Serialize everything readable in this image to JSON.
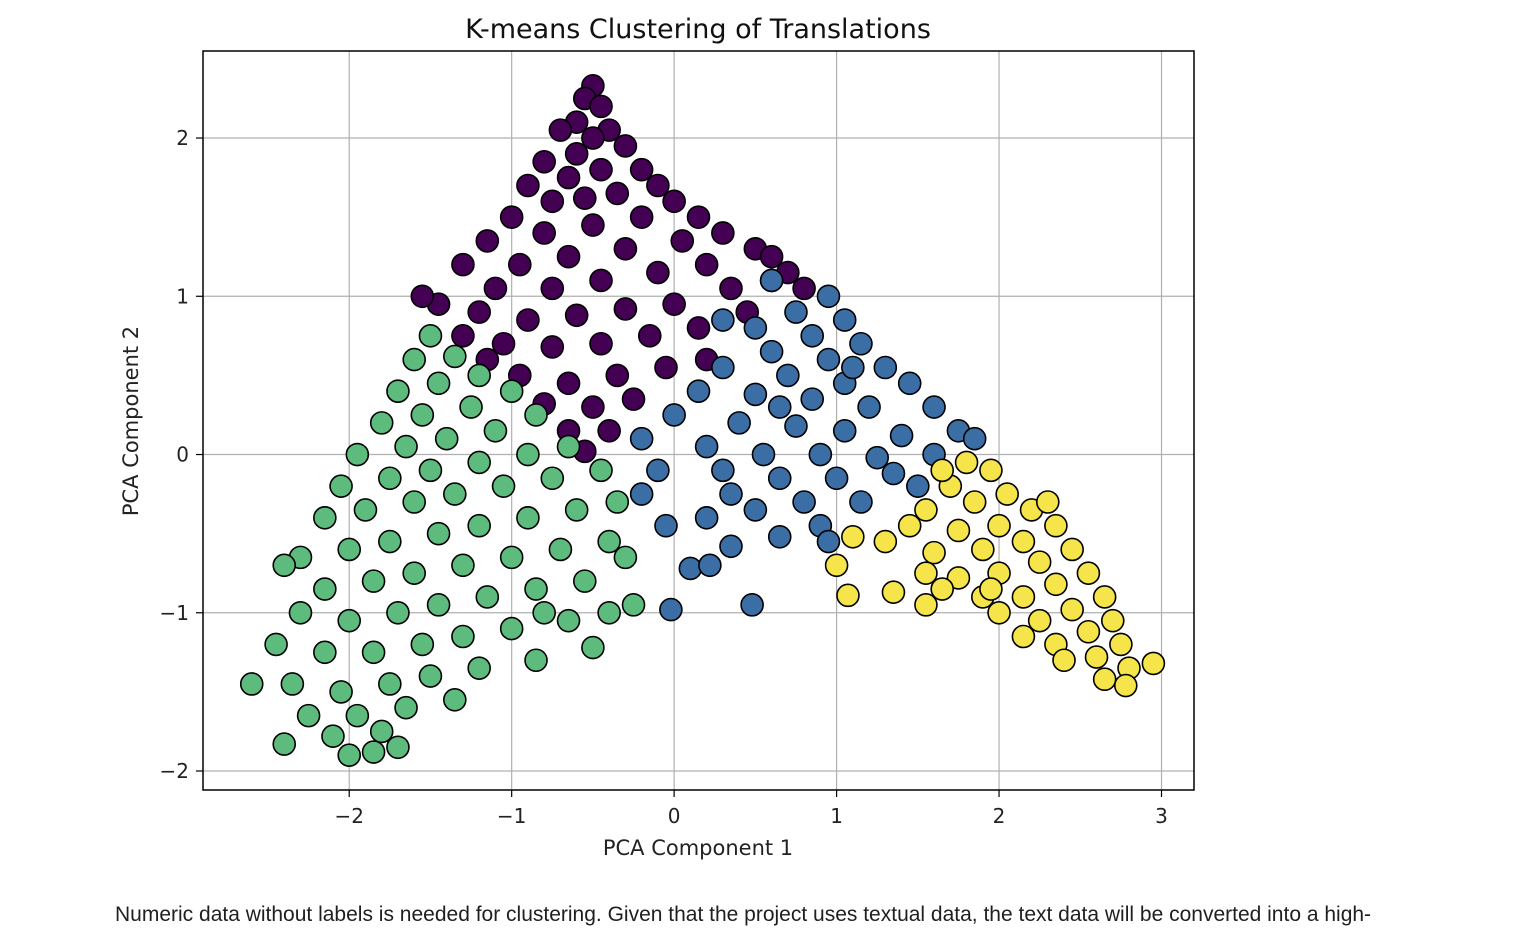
{
  "chart_data": {
    "type": "scatter",
    "title": "K-means Clustering of Translations",
    "xlabel": "PCA Component 1",
    "ylabel": "PCA Component 2",
    "xlim": [
      -2.9,
      3.2
    ],
    "ylim": [
      -2.12,
      2.55
    ],
    "xticks": [
      -2,
      -1,
      0,
      1,
      2,
      3
    ],
    "yticks": [
      -2,
      -1,
      0,
      1,
      2
    ],
    "xtick_labels": [
      "−2",
      "−1",
      "0",
      "1",
      "2",
      "3"
    ],
    "ytick_labels": [
      "−2",
      "−1",
      "0",
      "1",
      "2"
    ],
    "grid": true,
    "legend": "none",
    "marker_edge_color": "#000000",
    "clusters": [
      {
        "color": "#440154",
        "points": [
          [
            -0.5,
            2.33
          ],
          [
            -0.55,
            2.25
          ],
          [
            -0.45,
            2.2
          ],
          [
            -0.6,
            2.1
          ],
          [
            -0.4,
            2.05
          ],
          [
            -0.7,
            2.05
          ],
          [
            -0.5,
            2.0
          ],
          [
            -0.3,
            1.95
          ],
          [
            -0.6,
            1.9
          ],
          [
            -0.8,
            1.85
          ],
          [
            -0.2,
            1.8
          ],
          [
            -0.45,
            1.8
          ],
          [
            -0.65,
            1.75
          ],
          [
            -0.9,
            1.7
          ],
          [
            -0.1,
            1.7
          ],
          [
            -0.35,
            1.65
          ],
          [
            -0.55,
            1.62
          ],
          [
            -0.75,
            1.6
          ],
          [
            0.0,
            1.6
          ],
          [
            -1.0,
            1.5
          ],
          [
            0.15,
            1.5
          ],
          [
            -0.2,
            1.5
          ],
          [
            -0.5,
            1.45
          ],
          [
            -0.8,
            1.4
          ],
          [
            -1.15,
            1.35
          ],
          [
            0.3,
            1.4
          ],
          [
            0.05,
            1.35
          ],
          [
            -0.3,
            1.3
          ],
          [
            -0.65,
            1.25
          ],
          [
            -0.95,
            1.2
          ],
          [
            0.5,
            1.3
          ],
          [
            0.2,
            1.2
          ],
          [
            -0.1,
            1.15
          ],
          [
            -0.45,
            1.1
          ],
          [
            -0.75,
            1.05
          ],
          [
            -1.1,
            1.05
          ],
          [
            -1.3,
            1.2
          ],
          [
            0.6,
            1.25
          ],
          [
            0.35,
            1.05
          ],
          [
            0.0,
            0.95
          ],
          [
            -0.3,
            0.92
          ],
          [
            -0.6,
            0.88
          ],
          [
            -0.9,
            0.85
          ],
          [
            -1.2,
            0.9
          ],
          [
            -1.45,
            0.95
          ],
          [
            -1.55,
            1.0
          ],
          [
            0.45,
            0.9
          ],
          [
            0.15,
            0.8
          ],
          [
            -0.15,
            0.75
          ],
          [
            -0.45,
            0.7
          ],
          [
            -0.75,
            0.68
          ],
          [
            -1.05,
            0.7
          ],
          [
            -1.3,
            0.75
          ],
          [
            0.2,
            0.6
          ],
          [
            -0.05,
            0.55
          ],
          [
            -0.35,
            0.5
          ],
          [
            -0.65,
            0.45
          ],
          [
            -0.95,
            0.5
          ],
          [
            -1.15,
            0.6
          ],
          [
            -0.25,
            0.35
          ],
          [
            -0.5,
            0.3
          ],
          [
            -0.8,
            0.32
          ],
          [
            -0.4,
            0.15
          ],
          [
            -0.65,
            0.15
          ],
          [
            -0.55,
            0.02
          ],
          [
            0.6,
            1.1
          ],
          [
            0.7,
            1.15
          ],
          [
            0.8,
            1.05
          ]
        ]
      },
      {
        "color": "#3b6ea5",
        "points": [
          [
            0.6,
            1.1
          ],
          [
            0.95,
            1.0
          ],
          [
            0.75,
            0.9
          ],
          [
            1.05,
            0.85
          ],
          [
            0.5,
            0.8
          ],
          [
            0.85,
            0.75
          ],
          [
            1.15,
            0.7
          ],
          [
            0.6,
            0.65
          ],
          [
            0.95,
            0.6
          ],
          [
            1.3,
            0.55
          ],
          [
            0.3,
            0.55
          ],
          [
            0.7,
            0.5
          ],
          [
            1.05,
            0.45
          ],
          [
            1.45,
            0.45
          ],
          [
            0.15,
            0.4
          ],
          [
            0.5,
            0.38
          ],
          [
            0.85,
            0.35
          ],
          [
            1.2,
            0.3
          ],
          [
            1.6,
            0.3
          ],
          [
            0.0,
            0.25
          ],
          [
            0.4,
            0.2
          ],
          [
            0.75,
            0.18
          ],
          [
            1.05,
            0.15
          ],
          [
            1.4,
            0.12
          ],
          [
            1.75,
            0.15
          ],
          [
            -0.2,
            0.1
          ],
          [
            0.2,
            0.05
          ],
          [
            0.55,
            0.0
          ],
          [
            0.9,
            0.0
          ],
          [
            1.25,
            -0.02
          ],
          [
            1.6,
            0.0
          ],
          [
            -0.1,
            -0.1
          ],
          [
            0.3,
            -0.1
          ],
          [
            0.65,
            -0.15
          ],
          [
            1.0,
            -0.15
          ],
          [
            1.35,
            -0.12
          ],
          [
            -0.2,
            -0.25
          ],
          [
            0.35,
            -0.25
          ],
          [
            0.8,
            -0.3
          ],
          [
            1.15,
            -0.3
          ],
          [
            0.5,
            -0.35
          ],
          [
            0.9,
            -0.45
          ],
          [
            -0.05,
            -0.45
          ],
          [
            0.2,
            -0.4
          ],
          [
            0.35,
            -0.58
          ],
          [
            0.65,
            -0.52
          ],
          [
            0.95,
            -0.55
          ],
          [
            0.1,
            -0.72
          ],
          [
            0.22,
            -0.7
          ],
          [
            -0.02,
            -0.98
          ],
          [
            0.48,
            -0.95
          ],
          [
            1.85,
            0.1
          ],
          [
            1.5,
            -0.2
          ],
          [
            0.3,
            0.85
          ],
          [
            0.65,
            0.3
          ],
          [
            1.1,
            0.55
          ]
        ]
      },
      {
        "color": "#5dbb7e",
        "points": [
          [
            -1.5,
            0.75
          ],
          [
            -1.35,
            0.62
          ],
          [
            -1.6,
            0.6
          ],
          [
            -1.2,
            0.5
          ],
          [
            -1.45,
            0.45
          ],
          [
            -1.7,
            0.4
          ],
          [
            -1.0,
            0.4
          ],
          [
            -1.25,
            0.3
          ],
          [
            -1.55,
            0.25
          ],
          [
            -1.8,
            0.2
          ],
          [
            -0.85,
            0.25
          ],
          [
            -1.1,
            0.15
          ],
          [
            -1.4,
            0.1
          ],
          [
            -1.65,
            0.05
          ],
          [
            -1.95,
            0.0
          ],
          [
            -0.65,
            0.05
          ],
          [
            -0.9,
            0.0
          ],
          [
            -1.2,
            -0.05
          ],
          [
            -1.5,
            -0.1
          ],
          [
            -1.75,
            -0.15
          ],
          [
            -2.05,
            -0.2
          ],
          [
            -0.45,
            -0.1
          ],
          [
            -0.75,
            -0.15
          ],
          [
            -1.05,
            -0.2
          ],
          [
            -1.35,
            -0.25
          ],
          [
            -1.6,
            -0.3
          ],
          [
            -1.9,
            -0.35
          ],
          [
            -2.15,
            -0.4
          ],
          [
            -0.35,
            -0.3
          ],
          [
            -0.6,
            -0.35
          ],
          [
            -0.9,
            -0.4
          ],
          [
            -1.2,
            -0.45
          ],
          [
            -1.45,
            -0.5
          ],
          [
            -1.75,
            -0.55
          ],
          [
            -2.0,
            -0.6
          ],
          [
            -2.3,
            -0.65
          ],
          [
            -0.4,
            -0.55
          ],
          [
            -0.7,
            -0.6
          ],
          [
            -1.0,
            -0.65
          ],
          [
            -1.3,
            -0.7
          ],
          [
            -1.6,
            -0.75
          ],
          [
            -1.85,
            -0.8
          ],
          [
            -2.15,
            -0.85
          ],
          [
            -2.4,
            -0.7
          ],
          [
            -0.55,
            -0.8
          ],
          [
            -0.85,
            -0.85
          ],
          [
            -1.15,
            -0.9
          ],
          [
            -1.45,
            -0.95
          ],
          [
            -1.7,
            -1.0
          ],
          [
            -2.0,
            -1.05
          ],
          [
            -2.3,
            -1.0
          ],
          [
            -0.4,
            -1.0
          ],
          [
            -0.65,
            -1.05
          ],
          [
            -1.0,
            -1.1
          ],
          [
            -1.3,
            -1.15
          ],
          [
            -1.55,
            -1.2
          ],
          [
            -1.85,
            -1.25
          ],
          [
            -2.15,
            -1.25
          ],
          [
            -2.45,
            -1.2
          ],
          [
            -0.5,
            -1.22
          ],
          [
            -0.85,
            -1.3
          ],
          [
            -1.2,
            -1.35
          ],
          [
            -1.5,
            -1.4
          ],
          [
            -1.75,
            -1.45
          ],
          [
            -2.05,
            -1.5
          ],
          [
            -2.35,
            -1.45
          ],
          [
            -2.6,
            -1.45
          ],
          [
            -1.35,
            -1.55
          ],
          [
            -1.65,
            -1.6
          ],
          [
            -1.95,
            -1.65
          ],
          [
            -2.25,
            -1.65
          ],
          [
            -1.8,
            -1.75
          ],
          [
            -2.1,
            -1.78
          ],
          [
            -2.4,
            -1.83
          ],
          [
            -2.0,
            -1.9
          ],
          [
            -1.85,
            -1.88
          ],
          [
            -1.7,
            -1.85
          ],
          [
            -0.8,
            -1.0
          ],
          [
            -0.3,
            -0.65
          ],
          [
            -0.25,
            -0.95
          ]
        ]
      },
      {
        "color": "#f5e44a",
        "points": [
          [
            1.8,
            -0.05
          ],
          [
            1.95,
            -0.1
          ],
          [
            1.7,
            -0.2
          ],
          [
            2.05,
            -0.25
          ],
          [
            1.85,
            -0.3
          ],
          [
            1.55,
            -0.35
          ],
          [
            2.2,
            -0.35
          ],
          [
            2.0,
            -0.45
          ],
          [
            1.75,
            -0.48
          ],
          [
            1.45,
            -0.45
          ],
          [
            2.35,
            -0.45
          ],
          [
            2.15,
            -0.55
          ],
          [
            1.9,
            -0.6
          ],
          [
            1.6,
            -0.62
          ],
          [
            1.3,
            -0.55
          ],
          [
            2.45,
            -0.6
          ],
          [
            2.25,
            -0.68
          ],
          [
            2.0,
            -0.75
          ],
          [
            1.75,
            -0.78
          ],
          [
            1.1,
            -0.52
          ],
          [
            2.55,
            -0.75
          ],
          [
            2.35,
            -0.82
          ],
          [
            2.15,
            -0.9
          ],
          [
            1.9,
            -0.9
          ],
          [
            1.55,
            -0.75
          ],
          [
            2.65,
            -0.9
          ],
          [
            2.45,
            -0.98
          ],
          [
            2.25,
            -1.05
          ],
          [
            2.0,
            -1.0
          ],
          [
            1.65,
            -0.85
          ],
          [
            2.7,
            -1.05
          ],
          [
            2.55,
            -1.12
          ],
          [
            2.35,
            -1.2
          ],
          [
            2.15,
            -1.15
          ],
          [
            2.75,
            -1.2
          ],
          [
            2.6,
            -1.28
          ],
          [
            2.4,
            -1.3
          ],
          [
            2.8,
            -1.35
          ],
          [
            2.65,
            -1.42
          ],
          [
            2.78,
            -1.46
          ],
          [
            2.95,
            -1.32
          ],
          [
            1.0,
            -0.7
          ],
          [
            1.07,
            -0.89
          ],
          [
            1.35,
            -0.87
          ],
          [
            1.55,
            -0.95
          ],
          [
            2.3,
            -0.3
          ],
          [
            1.65,
            -0.1
          ],
          [
            1.95,
            -0.85
          ]
        ]
      }
    ]
  },
  "caption": {
    "text": "Numeric data without labels is needed for clustering. Given that the project uses textual data, the text data will be converted into a high-"
  }
}
